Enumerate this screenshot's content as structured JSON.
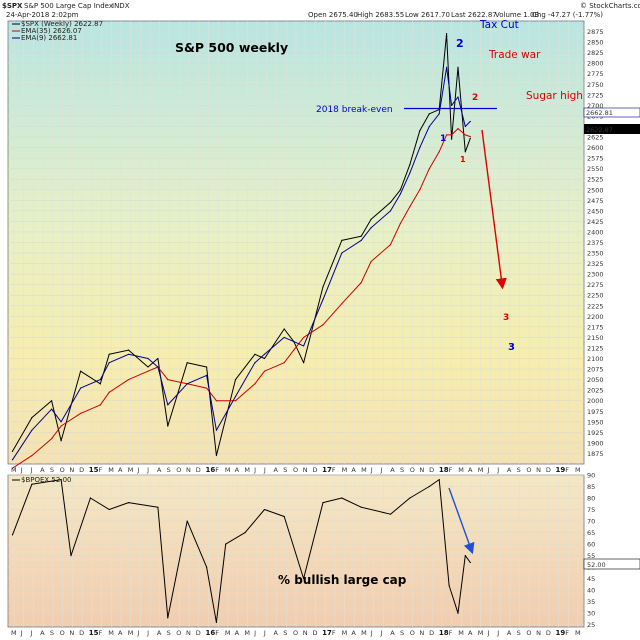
{
  "header": {
    "ticker": "$SPX",
    "name": "S&P 500 Large Cap Index",
    "exchange": "INDX",
    "date": "24-Apr-2018 2:02pm",
    "open": "Open 2675.40",
    "high": "High 2683.55",
    "low": "Low 2617.70",
    "last": "Last 2622.87",
    "volume": "Volume 1.0B",
    "chg": "Chg -47.27 (-1.77%)",
    "source": "© StockCharts.com"
  },
  "legend": {
    "price": "$SPX (Weekly) 2622.87",
    "ema35": "EMA(35) 2626.07",
    "ema9": "EMA(9) 2662.81",
    "bpoex": "$BPOEX 52.00"
  },
  "annotations": {
    "main_title": "S&P 500 weekly",
    "tax_cut": "Tax Cut",
    "trade_war": "Trade war",
    "sugar_high": "Sugar high",
    "break_even": "2018 break-even",
    "wave_blue_1": "1",
    "wave_blue_2": "2",
    "wave_blue_3": "3",
    "wave_red_1": "1",
    "wave_red_2": "2",
    "wave_red_3": "3",
    "lower_title": "% bullish large cap"
  },
  "price_tags": {
    "ema9": "2662.81",
    "last": "2622.87",
    "bpoex": "52.00"
  },
  "colors": {
    "price": "#000000",
    "ema35": "#cc0000",
    "ema9": "#00008b",
    "blue_text": "#0000cc",
    "red_text": "#dd0000",
    "arrow_blue": "#1e4fd8",
    "arrow_red": "#e00000"
  },
  "chart_data": [
    {
      "type": "line",
      "title": "S&P 500 weekly",
      "ylim": [
        1850,
        2900
      ],
      "y_ticks": [
        1875,
        1900,
        1925,
        1950,
        1975,
        2000,
        2025,
        2050,
        2075,
        2100,
        2125,
        2150,
        2175,
        2200,
        2225,
        2250,
        2275,
        2300,
        2325,
        2350,
        2375,
        2400,
        2425,
        2450,
        2475,
        2500,
        2525,
        2550,
        2575,
        2600,
        2625,
        2650,
        2675,
        2700,
        2725,
        2750,
        2775,
        2800,
        2825,
        2850,
        2875
      ],
      "x_ticks": [
        "M",
        "J",
        "J",
        "A",
        "S",
        "O",
        "N",
        "D",
        "15",
        "F",
        "M",
        "A",
        "M",
        "J",
        "J",
        "A",
        "S",
        "O",
        "N",
        "D",
        "16",
        "F",
        "M",
        "A",
        "M",
        "J",
        "J",
        "A",
        "S",
        "O",
        "N",
        "D",
        "17",
        "F",
        "M",
        "A",
        "M",
        "J",
        "J",
        "A",
        "S",
        "O",
        "N",
        "D",
        "18",
        "F",
        "M",
        "A",
        "M",
        "J",
        "J",
        "A",
        "S",
        "O",
        "N",
        "D",
        "19",
        "F",
        "M"
      ],
      "x": [
        "2014-05",
        "2014-07",
        "2014-09",
        "2014-10",
        "2014-12",
        "2015-02",
        "2015-03",
        "2015-05",
        "2015-07",
        "2015-08",
        "2015-09",
        "2015-11",
        "2016-01",
        "2016-02",
        "2016-04",
        "2016-06",
        "2016-07",
        "2016-09",
        "2016-10",
        "2016-11",
        "2017-01",
        "2017-03",
        "2017-05",
        "2017-06",
        "2017-08",
        "2017-09",
        "2017-10",
        "2017-11",
        "2017-12",
        "2018-01",
        "2018-02",
        "2018-02",
        "2018-03",
        "2018-04",
        "2018-04"
      ],
      "series": [
        {
          "name": "$SPX (Weekly) 2622.87",
          "values": [
            1880,
            1960,
            2000,
            1905,
            2070,
            2040,
            2110,
            2120,
            2080,
            2100,
            1940,
            2090,
            2080,
            1870,
            2050,
            2110,
            2100,
            2170,
            2140,
            2090,
            2270,
            2380,
            2390,
            2430,
            2470,
            2500,
            2560,
            2640,
            2680,
            2690,
            2870,
            2620,
            2790,
            2590,
            2622
          ]
        },
        {
          "name": "EMA(35) 2626.07",
          "values": [
            1840,
            1870,
            1910,
            1940,
            1970,
            1990,
            2020,
            2050,
            2070,
            2080,
            2050,
            2040,
            2030,
            2000,
            2000,
            2040,
            2070,
            2090,
            2120,
            2150,
            2180,
            2230,
            2280,
            2330,
            2370,
            2420,
            2460,
            2500,
            2550,
            2590,
            2630,
            2630,
            2645,
            2630,
            2626
          ]
        },
        {
          "name": "EMA(9) 2662.81",
          "values": [
            1860,
            1930,
            1980,
            1950,
            2030,
            2050,
            2090,
            2110,
            2100,
            2080,
            1990,
            2040,
            2060,
            1930,
            2010,
            2090,
            2110,
            2150,
            2140,
            2130,
            2240,
            2350,
            2380,
            2410,
            2450,
            2490,
            2540,
            2600,
            2650,
            2680,
            2790,
            2700,
            2720,
            2650,
            2662
          ]
        }
      ]
    },
    {
      "type": "line",
      "title": "$BPOEX 52.00",
      "ylim": [
        24,
        90
      ],
      "y_ticks": [
        25,
        30,
        35,
        40,
        45,
        50,
        55,
        60,
        65,
        70,
        75,
        80,
        85,
        90
      ],
      "x": [
        "2014-05",
        "2014-07",
        "2014-10",
        "2014-11",
        "2015-01",
        "2015-03",
        "2015-05",
        "2015-08",
        "2015-09",
        "2015-11",
        "2016-01",
        "2016-02",
        "2016-03",
        "2016-05",
        "2016-07",
        "2016-09",
        "2016-11",
        "2017-01",
        "2017-03",
        "2017-05",
        "2017-08",
        "2017-10",
        "2017-12",
        "2018-01",
        "2018-02",
        "2018-03",
        "2018-04",
        "2018-04"
      ],
      "series": [
        {
          "name": "$BPOEX",
          "values": [
            64,
            86,
            88,
            55,
            80,
            75,
            78,
            76,
            28,
            70,
            50,
            26,
            60,
            65,
            75,
            72,
            45,
            78,
            80,
            76,
            73,
            80,
            85,
            88,
            42,
            30,
            55,
            52
          ]
        }
      ]
    }
  ]
}
